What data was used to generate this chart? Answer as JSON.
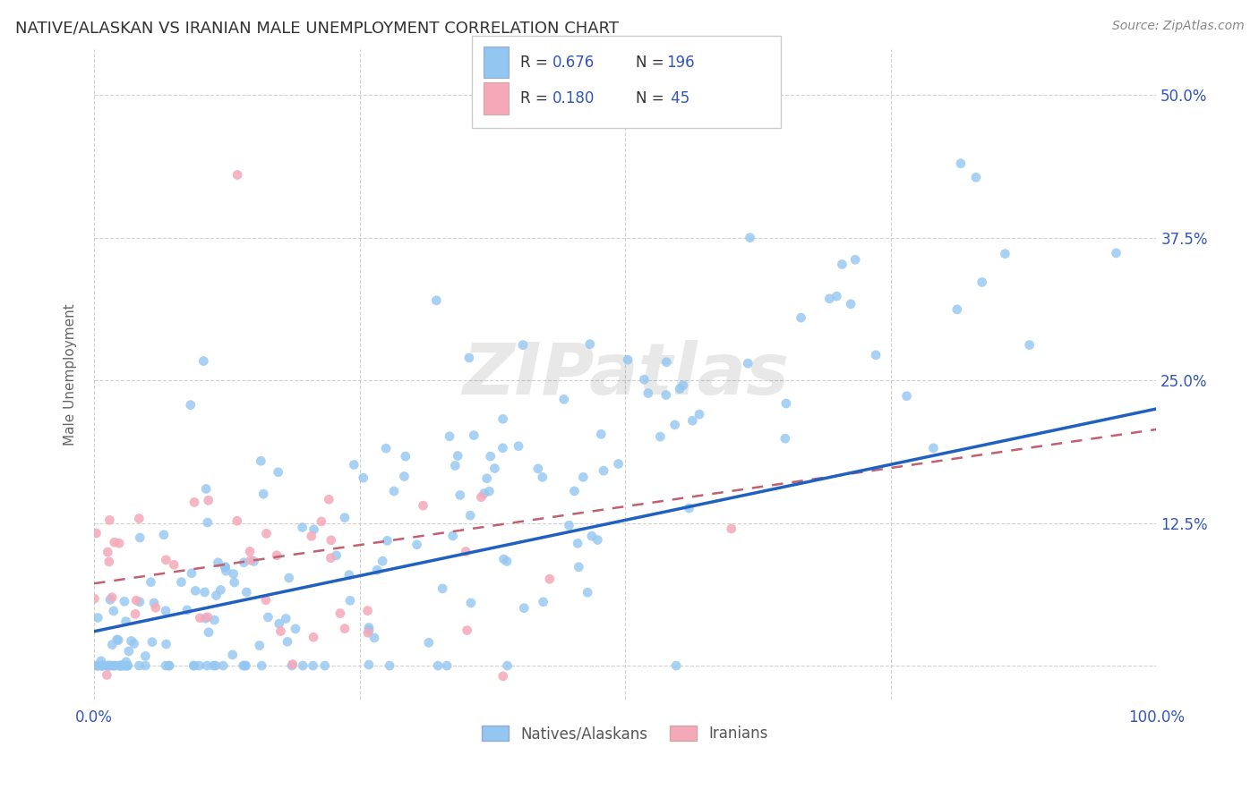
{
  "title": "NATIVE/ALASKAN VS IRANIAN MALE UNEMPLOYMENT CORRELATION CHART",
  "source": "Source: ZipAtlas.com",
  "ylabel": "Male Unemployment",
  "blue_color": "#93C6F0",
  "pink_color": "#F5A8B8",
  "blue_line_color": "#2060C0",
  "pink_line_color": "#C06070",
  "watermark": "ZIPatlas",
  "background_color": "#FFFFFF",
  "grid_color": "#CCCCCC",
  "title_color": "#333333",
  "axis_label_color": "#3355BB",
  "r_value_blue": 0.676,
  "r_value_pink": 0.18,
  "n_blue": 196,
  "n_pink": 45,
  "ylim_min": -0.03,
  "ylim_max": 0.54,
  "yticks": [
    0.0,
    0.125,
    0.25,
    0.375,
    0.5
  ],
  "ytick_labels": [
    "",
    "12.5%",
    "25.0%",
    "37.5%",
    "50.0%"
  ],
  "xtick_labels": [
    "0.0%",
    "",
    "",
    "",
    "100.0%"
  ]
}
